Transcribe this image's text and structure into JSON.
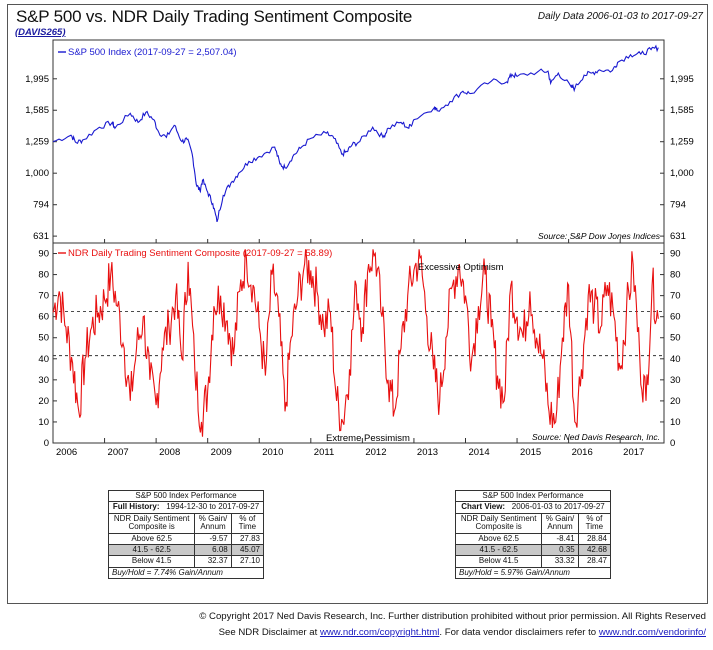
{
  "header": {
    "title": "S&P 500 vs. NDR Daily Trading Sentiment Composite",
    "code": "(DAVIS265)",
    "date_range": "Daily Data 2006-01-03 to 2017-09-27"
  },
  "colors": {
    "spx_line": "#1a1ad0",
    "sentiment_line": "#e81010",
    "accent_text": "#e81010",
    "legend_blue": "#1a1ad0"
  },
  "chart_data": [
    {
      "type": "line",
      "legend": "S&P 500 Index (2017-09-27 = 2,507.04)",
      "source": "Source:   S&P Dow Jones Indices",
      "y_scale": "log",
      "yticks": [
        631,
        794,
        1000,
        1259,
        1585,
        1995
      ],
      "ytick_labels": [
        "631",
        "794",
        "1,000",
        "1,259",
        "1,585",
        "1,995"
      ],
      "ylim": [
        600,
        2650
      ],
      "xlim": [
        2006.0,
        2017.85
      ],
      "series": [
        {
          "name": "S&P 500 Index",
          "x": [
            2006.0,
            2006.35,
            2006.45,
            2006.6,
            2006.9,
            2007.15,
            2007.2,
            2007.5,
            2007.65,
            2007.8,
            2007.95,
            2008.05,
            2008.2,
            2008.35,
            2008.5,
            2008.6,
            2008.7,
            2008.78,
            2008.85,
            2008.9,
            2009.0,
            2009.1,
            2009.18,
            2009.3,
            2009.45,
            2009.6,
            2009.8,
            2010.0,
            2010.3,
            2010.4,
            2010.5,
            2010.65,
            2010.8,
            2011.0,
            2011.3,
            2011.45,
            2011.6,
            2011.7,
            2011.8,
            2011.95,
            2012.2,
            2012.4,
            2012.5,
            2012.75,
            2012.9,
            2013.0,
            2013.4,
            2013.45,
            2013.7,
            2013.95,
            2014.1,
            2014.5,
            2014.8,
            2014.9,
            2015.0,
            2015.4,
            2015.6,
            2015.65,
            2015.8,
            2016.05,
            2016.12,
            2016.3,
            2016.45,
            2016.6,
            2016.85,
            2016.95,
            2017.2,
            2017.4,
            2017.6,
            2017.74
          ],
          "values": [
            1260,
            1320,
            1250,
            1280,
            1400,
            1450,
            1390,
            1550,
            1450,
            1560,
            1480,
            1350,
            1300,
            1420,
            1260,
            1280,
            1150,
            920,
            880,
            950,
            870,
            800,
            700,
            850,
            930,
            1000,
            1090,
            1130,
            1210,
            1070,
            1040,
            1130,
            1200,
            1290,
            1340,
            1290,
            1150,
            1170,
            1230,
            1260,
            1400,
            1300,
            1390,
            1450,
            1390,
            1480,
            1620,
            1580,
            1690,
            1820,
            1790,
            1960,
            1950,
            2060,
            2030,
            2100,
            2110,
            1930,
            2080,
            1880,
            1860,
            2050,
            2080,
            2130,
            2120,
            2250,
            2380,
            2390,
            2470,
            2507
          ]
        }
      ]
    },
    {
      "type": "line",
      "legend": "NDR Daily Trading Sentiment Composite (2017-09-27 = 58.89)",
      "source": "Source:   Ned Davis Research, Inc.",
      "yticks": [
        0,
        10,
        20,
        30,
        40,
        50,
        60,
        70,
        80,
        90
      ],
      "ylim": [
        0,
        95
      ],
      "xlim": [
        2006.0,
        2017.85
      ],
      "xticks": [
        2006,
        2007,
        2008,
        2009,
        2010,
        2011,
        2012,
        2013,
        2014,
        2015,
        2016,
        2017
      ],
      "reference_lines": [
        62.5,
        41.5
      ],
      "annotations": [
        "Excessive Optimism",
        "Extreme Pessimism"
      ],
      "series": [
        {
          "name": "NDR Daily Trading Sentiment Composite",
          "x": [
            2006.0,
            2006.12,
            2006.25,
            2006.38,
            2006.5,
            2006.62,
            2006.75,
            2006.88,
            2007.0,
            2007.12,
            2007.25,
            2007.38,
            2007.5,
            2007.62,
            2007.75,
            2007.88,
            2008.0,
            2008.12,
            2008.25,
            2008.38,
            2008.5,
            2008.62,
            2008.75,
            2008.88,
            2009.0,
            2009.12,
            2009.25,
            2009.38,
            2009.5,
            2009.62,
            2009.75,
            2009.88,
            2010.0,
            2010.12,
            2010.25,
            2010.38,
            2010.5,
            2010.62,
            2010.75,
            2010.88,
            2011.0,
            2011.12,
            2011.25,
            2011.38,
            2011.5,
            2011.62,
            2011.75,
            2011.88,
            2012.0,
            2012.12,
            2012.25,
            2012.38,
            2012.5,
            2012.62,
            2012.75,
            2012.88,
            2013.0,
            2013.12,
            2013.25,
            2013.38,
            2013.5,
            2013.62,
            2013.75,
            2013.88,
            2014.0,
            2014.12,
            2014.25,
            2014.38,
            2014.5,
            2014.62,
            2014.75,
            2014.88,
            2015.0,
            2015.12,
            2015.25,
            2015.38,
            2015.5,
            2015.62,
            2015.75,
            2015.88,
            2016.0,
            2016.12,
            2016.25,
            2016.38,
            2016.5,
            2016.62,
            2016.75,
            2016.88,
            2017.0,
            2017.12,
            2017.25,
            2017.38,
            2017.5,
            2017.62,
            2017.74
          ],
          "values": [
            62,
            72,
            55,
            38,
            15,
            40,
            55,
            62,
            68,
            80,
            65,
            45,
            20,
            45,
            60,
            30,
            18,
            45,
            55,
            70,
            40,
            86,
            35,
            10,
            25,
            65,
            70,
            58,
            42,
            72,
            88,
            75,
            55,
            32,
            80,
            60,
            15,
            50,
            70,
            85,
            82,
            72,
            55,
            62,
            20,
            10,
            35,
            75,
            55,
            85,
            90,
            60,
            30,
            15,
            45,
            70,
            82,
            88,
            60,
            35,
            20,
            50,
            75,
            85,
            70,
            40,
            65,
            80,
            55,
            32,
            20,
            75,
            60,
            50,
            72,
            50,
            40,
            15,
            10,
            50,
            75,
            10,
            35,
            70,
            65,
            55,
            75,
            60,
            35,
            62,
            85,
            40,
            20,
            75,
            59
          ]
        }
      ]
    }
  ],
  "tables": [
    {
      "title": "S&P 500 Index Performance",
      "period_label": "Full History:",
      "period": "1994-12-30 to 2017-09-27",
      "headers": [
        "NDR Daily Sentiment Composite is",
        "% Gain/ Annum",
        "% of Time"
      ],
      "rows": [
        [
          "Above 62.5",
          "-9.57",
          "27.83"
        ],
        [
          "41.5 - 62.5",
          "6.08",
          "45.07"
        ],
        [
          "Below 41.5",
          "32.37",
          "27.10"
        ]
      ],
      "footnote": "Buy/Hold = 7.74% Gain/Annum"
    },
    {
      "title": "S&P 500 Index Performance",
      "period_label": "Chart View:",
      "period": "2006-01-03 to 2017-09-27",
      "headers": [
        "NDR Daily Sentiment Composite is",
        "% Gain/ Annum",
        "% of Time"
      ],
      "rows": [
        [
          "Above 62.5",
          "-8.41",
          "28.84"
        ],
        [
          "41.5 - 62.5",
          "0.35",
          "42.68"
        ],
        [
          "Below 41.5",
          "33.32",
          "28.47"
        ]
      ],
      "footnote": "Buy/Hold = 5.97% Gain/Annum"
    }
  ],
  "footer": {
    "line1": "© Copyright 2017 Ned Davis Research, Inc. Further distribution prohibited without prior permission. All Rights Reserved",
    "line2_pre": "See NDR Disclaimer at ",
    "link1": "www.ndr.com/copyright.html",
    "line2_mid": ". For data vendor disclaimers refer to ",
    "link2": "www.ndr.com/vendorinfo/"
  }
}
